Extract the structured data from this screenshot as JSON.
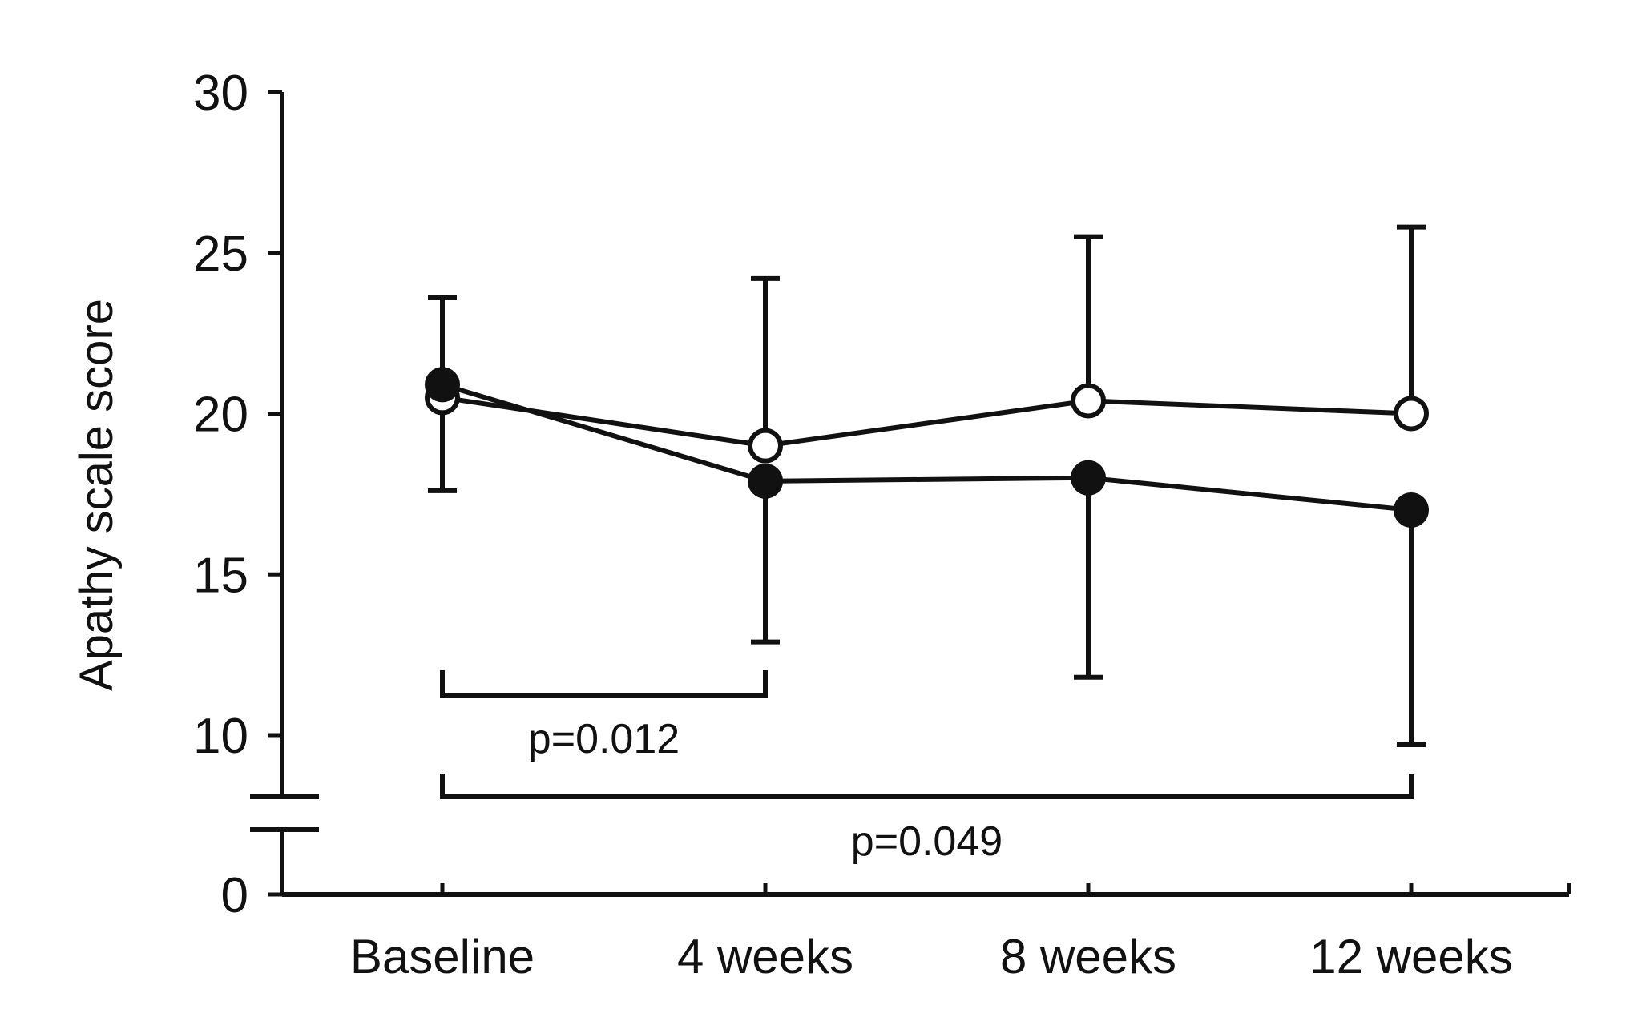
{
  "chart_data": {
    "type": "line",
    "title": "",
    "xlabel": "",
    "ylabel": "Apathy scale score",
    "categories": [
      "Baseline",
      "4 weeks",
      "8 weeks",
      "12 weeks"
    ],
    "ylim": [
      0,
      30
    ],
    "y_axis_break": true,
    "yticks": [
      0,
      10,
      15,
      20,
      25,
      30
    ],
    "grid": false,
    "series": [
      {
        "name": "open circles",
        "marker": "open-circle",
        "values": [
          20.5,
          19.0,
          20.4,
          20.0
        ],
        "error_upper": [
          23.6,
          24.2,
          25.5,
          25.8
        ],
        "error_lower": [
          17.6,
          null,
          null,
          null
        ]
      },
      {
        "name": "filled circles",
        "marker": "filled-circle",
        "values": [
          20.9,
          17.9,
          18.0,
          17.0
        ],
        "error_upper": [
          null,
          null,
          null,
          null
        ],
        "error_lower": [
          null,
          12.9,
          11.8,
          9.7
        ]
      }
    ],
    "annotations": [
      {
        "from": "Baseline",
        "to": "4 weeks",
        "text": "p=0.012"
      },
      {
        "from": "Baseline",
        "to": "12 weeks",
        "text": "p=0.049"
      }
    ]
  }
}
